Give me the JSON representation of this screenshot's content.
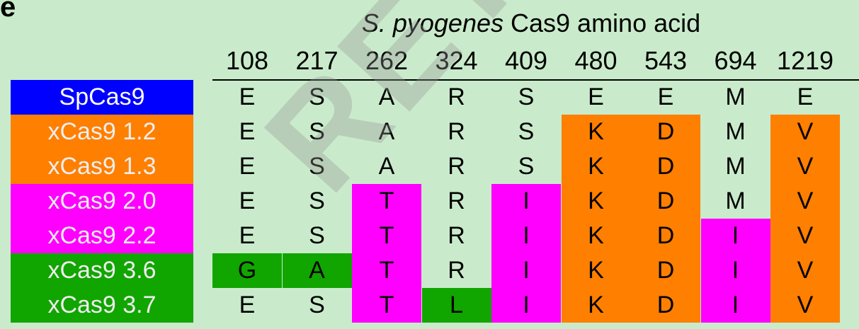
{
  "panel_letter": "e",
  "title": {
    "italic": "S. pyogenes",
    "rest": " Cas9 amino acid"
  },
  "positions": [
    "108",
    "217",
    "262",
    "324",
    "409",
    "480",
    "543",
    "694",
    "1219"
  ],
  "colors": {
    "background": "#c9ebcb",
    "blue": "#0000ff",
    "orange": "#ff7f00",
    "magenta": "#ff00ff",
    "green": "#11a500"
  },
  "variants": [
    {
      "name": "SpCas9",
      "color": "#0000ff",
      "residues": [
        "E",
        "S",
        "A",
        "R",
        "S",
        "E",
        "E",
        "M",
        "E"
      ],
      "highlights": [
        null,
        null,
        null,
        null,
        null,
        null,
        null,
        null,
        null
      ]
    },
    {
      "name": "xCas9 1.2",
      "color": "#ff7f00",
      "residues": [
        "E",
        "S",
        "A",
        "R",
        "S",
        "K",
        "D",
        "M",
        "V"
      ],
      "highlights": [
        null,
        null,
        null,
        null,
        null,
        "#ff7f00",
        "#ff7f00",
        null,
        "#ff7f00"
      ]
    },
    {
      "name": "xCas9 1.3",
      "color": "#ff7f00",
      "residues": [
        "E",
        "S",
        "A",
        "R",
        "S",
        "K",
        "D",
        "M",
        "V"
      ],
      "highlights": [
        null,
        null,
        null,
        null,
        null,
        "#ff7f00",
        "#ff7f00",
        null,
        "#ff7f00"
      ]
    },
    {
      "name": "xCas9 2.0",
      "color": "#ff00ff",
      "residues": [
        "E",
        "S",
        "T",
        "R",
        "I",
        "K",
        "D",
        "M",
        "V"
      ],
      "highlights": [
        null,
        null,
        "#ff00ff",
        null,
        "#ff00ff",
        "#ff7f00",
        "#ff7f00",
        null,
        "#ff7f00"
      ]
    },
    {
      "name": "xCas9 2.2",
      "color": "#ff00ff",
      "residues": [
        "E",
        "S",
        "T",
        "R",
        "I",
        "K",
        "D",
        "I",
        "V"
      ],
      "highlights": [
        null,
        null,
        "#ff00ff",
        null,
        "#ff00ff",
        "#ff7f00",
        "#ff7f00",
        "#ff00ff",
        "#ff7f00"
      ]
    },
    {
      "name": "xCas9 3.6",
      "color": "#11a500",
      "residues": [
        "G",
        "A",
        "T",
        "R",
        "I",
        "K",
        "D",
        "I",
        "V"
      ],
      "highlights": [
        "#11a500",
        "#11a500",
        "#ff00ff",
        null,
        "#ff00ff",
        "#ff7f00",
        "#ff7f00",
        "#ff00ff",
        "#ff7f00"
      ]
    },
    {
      "name": "xCas9 3.7",
      "color": "#11a500",
      "residues": [
        "E",
        "S",
        "T",
        "L",
        "I",
        "K",
        "D",
        "I",
        "V"
      ],
      "highlights": [
        null,
        null,
        "#ff00ff",
        "#11a500",
        "#ff00ff",
        "#ff7f00",
        "#ff7f00",
        "#ff00ff",
        "#ff7f00"
      ]
    }
  ]
}
